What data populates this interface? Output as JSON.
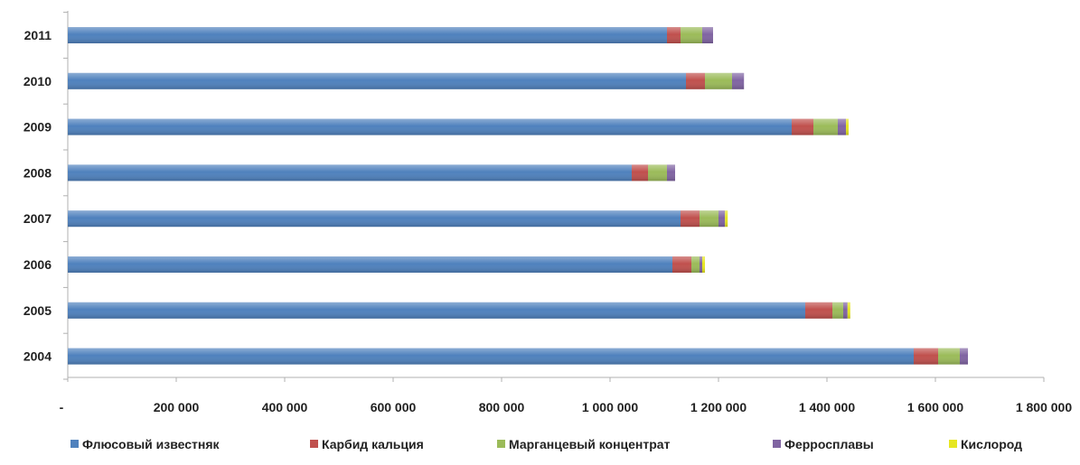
{
  "chart_data": {
    "type": "bar",
    "orientation": "horizontal",
    "stacked": true,
    "categories": [
      "2011",
      "2010",
      "2009",
      "2008",
      "2007",
      "2006",
      "2005",
      "2004"
    ],
    "series": [
      {
        "name": "Флюсовый известняк",
        "color": "#4f81bd",
        "values": [
          1105000,
          1140000,
          1335000,
          1040000,
          1130000,
          1115000,
          1360000,
          1560000
        ]
      },
      {
        "name": "Карбид кальция",
        "color": "#c0504d",
        "values": [
          25000,
          35000,
          40000,
          30000,
          35000,
          35000,
          50000,
          45000
        ]
      },
      {
        "name": "Марганцевый концентрат",
        "color": "#9bbb59",
        "values": [
          40000,
          50000,
          45000,
          35000,
          35000,
          15000,
          20000,
          40000
        ]
      },
      {
        "name": "Ферросплавы",
        "color": "#8064a2",
        "values": [
          20000,
          22000,
          15000,
          15000,
          12000,
          5000,
          8000,
          15000
        ]
      },
      {
        "name": "Кислород",
        "color": "#e6e620",
        "values": [
          0,
          0,
          5000,
          0,
          5000,
          5000,
          5000,
          0
        ]
      }
    ],
    "x_tick_labels": [
      "-",
      "200 000",
      "400 000",
      "600 000",
      "800 000",
      "1 000 000",
      "1 200 000",
      "1 400 000",
      "1 600 000",
      "1 800 000"
    ],
    "xlim": [
      0,
      1800000
    ],
    "grid": false,
    "legend_position": "bottom"
  }
}
